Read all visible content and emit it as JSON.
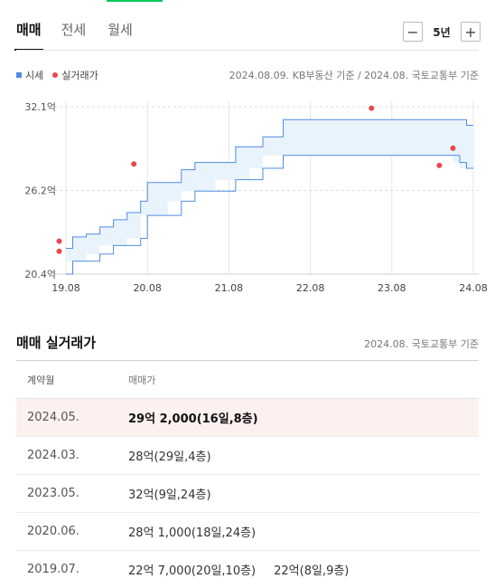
{
  "tabs": [
    {
      "label": "매매"
    },
    {
      "label": "전세"
    },
    {
      "label": "월세"
    }
  ],
  "period": {
    "minus": "−",
    "label": "5년",
    "plus": "+"
  },
  "legend": {
    "market_price": "시세",
    "actual_deal": "실거래가"
  },
  "chart_source": "2024.08.09. KB부동산 기준 / 2024.08. 국토교통부 기준",
  "colors": {
    "band": "#4e8de0",
    "band_fill": "#e9f3fc",
    "dot": "#e8484c",
    "highlight_row": "#fdf1ef"
  },
  "chart_data": {
    "type": "area",
    "y_unit": "억",
    "ylim": [
      20.4,
      32.1
    ],
    "y_ticks": [
      "32.1억",
      "26.2억",
      "20.4억"
    ],
    "x_ticks": [
      "19.08",
      "20.08",
      "21.08",
      "22.08",
      "23.08",
      "24.08"
    ],
    "grid": true,
    "legend_position": "top-left",
    "series": [
      {
        "name": "시세",
        "x": [
          "2019.08",
          "2019.09",
          "2019.11",
          "2020.01",
          "2020.03",
          "2020.05",
          "2020.07",
          "2020.08",
          "2020.11",
          "2021.01",
          "2021.03",
          "2021.06",
          "2021.09",
          "2021.11",
          "2022.01",
          "2022.04",
          "2022.08",
          "2023.08",
          "2024.05",
          "2024.06",
          "2024.07",
          "2024.08",
          "2024.08"
        ],
        "low": [
          20.4,
          21.3,
          21.3,
          21.8,
          22.4,
          22.4,
          22.9,
          24.5,
          24.5,
          25.5,
          26.2,
          26.2,
          27.0,
          27.0,
          27.8,
          28.7,
          28.7,
          28.7,
          28.7,
          28.2,
          27.8,
          27.8,
          27.8
        ],
        "high": [
          22.2,
          23.0,
          23.2,
          23.7,
          24.2,
          24.7,
          25.5,
          26.8,
          26.8,
          27.7,
          28.2,
          28.2,
          29.3,
          29.3,
          30.0,
          31.2,
          31.2,
          31.2,
          31.2,
          31.2,
          30.8,
          30.8,
          30.8
        ]
      }
    ],
    "deals": [
      {
        "date": "2019.07",
        "price": 22.7
      },
      {
        "date": "2019.07",
        "price": 22.0
      },
      {
        "date": "2020.06",
        "price": 28.1
      },
      {
        "date": "2023.05",
        "price": 32.0
      },
      {
        "date": "2024.03",
        "price": 28.0
      },
      {
        "date": "2024.05",
        "price": 29.2
      }
    ]
  },
  "deals_section": {
    "title": "매매 실거래가",
    "source": "2024.08. 국토교통부 기준",
    "columns": [
      "계약월",
      "매매가"
    ],
    "rows": [
      {
        "month": "2024.05.",
        "deals": [
          "29억 2,000(16일,8층)"
        ],
        "highlight": true
      },
      {
        "month": "2024.03.",
        "deals": [
          "28억(29일,4층)"
        ],
        "highlight": false
      },
      {
        "month": "2023.05.",
        "deals": [
          "32억(9일,24층)"
        ],
        "highlight": false
      },
      {
        "month": "2020.06.",
        "deals": [
          "28억 1,000(18일,24층)"
        ],
        "highlight": false
      },
      {
        "month": "2019.07.",
        "deals": [
          "22억 7,000(20일,10층)",
          "22억(8일,9층)"
        ],
        "highlight": false
      }
    ]
  }
}
